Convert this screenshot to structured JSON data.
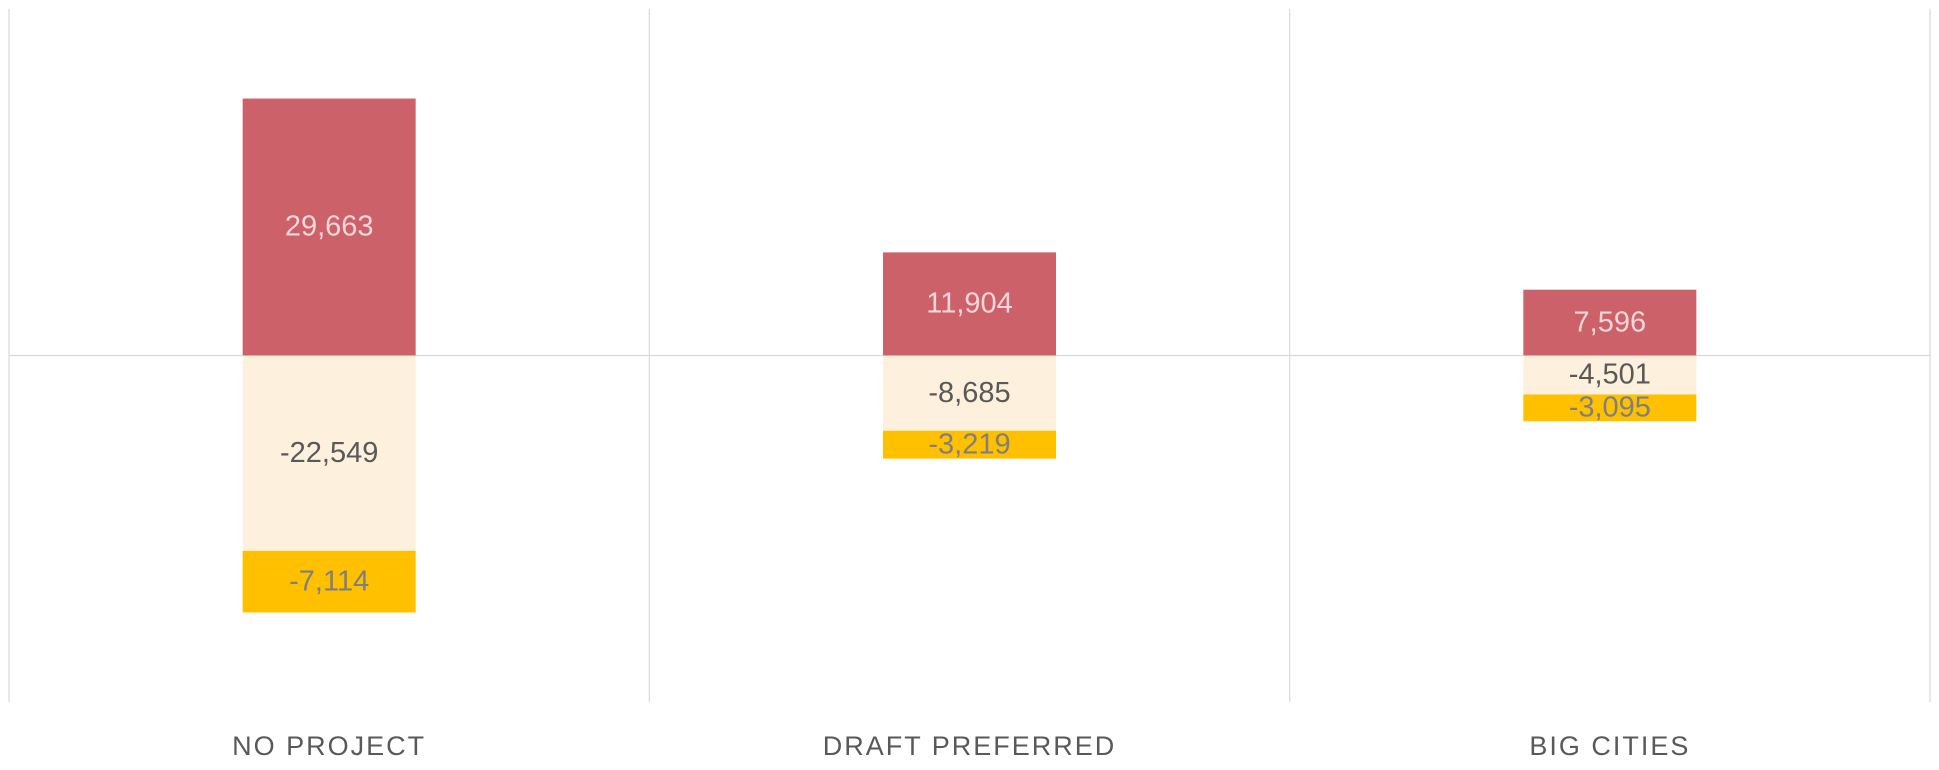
{
  "chart_data": {
    "type": "stacked_bar",
    "categories": [
      "NO PROJECT",
      "DRAFT PREFERRED",
      "BIG CITIES"
    ],
    "series": [
      {
        "color": "#cd6169",
        "label_color": "#f3d6d9",
        "values": [
          29663,
          11904,
          7596
        ],
        "value_labels": [
          "29,663",
          "11,904",
          "7,596"
        ]
      },
      {
        "color": "#fdf0dc",
        "label_color": "#595959",
        "values": [
          -22549,
          -8685,
          -4501
        ],
        "value_labels": [
          "-22,549",
          "-8,685",
          "-4,501"
        ]
      },
      {
        "color": "#ffc000",
        "label_color": "#7f7f7f",
        "values": [
          -7114,
          -3219,
          -3095
        ],
        "value_labels": [
          "-7,114",
          "-3,219",
          "-3,095"
        ]
      }
    ],
    "ylim": [
      -40000,
      40000
    ]
  }
}
